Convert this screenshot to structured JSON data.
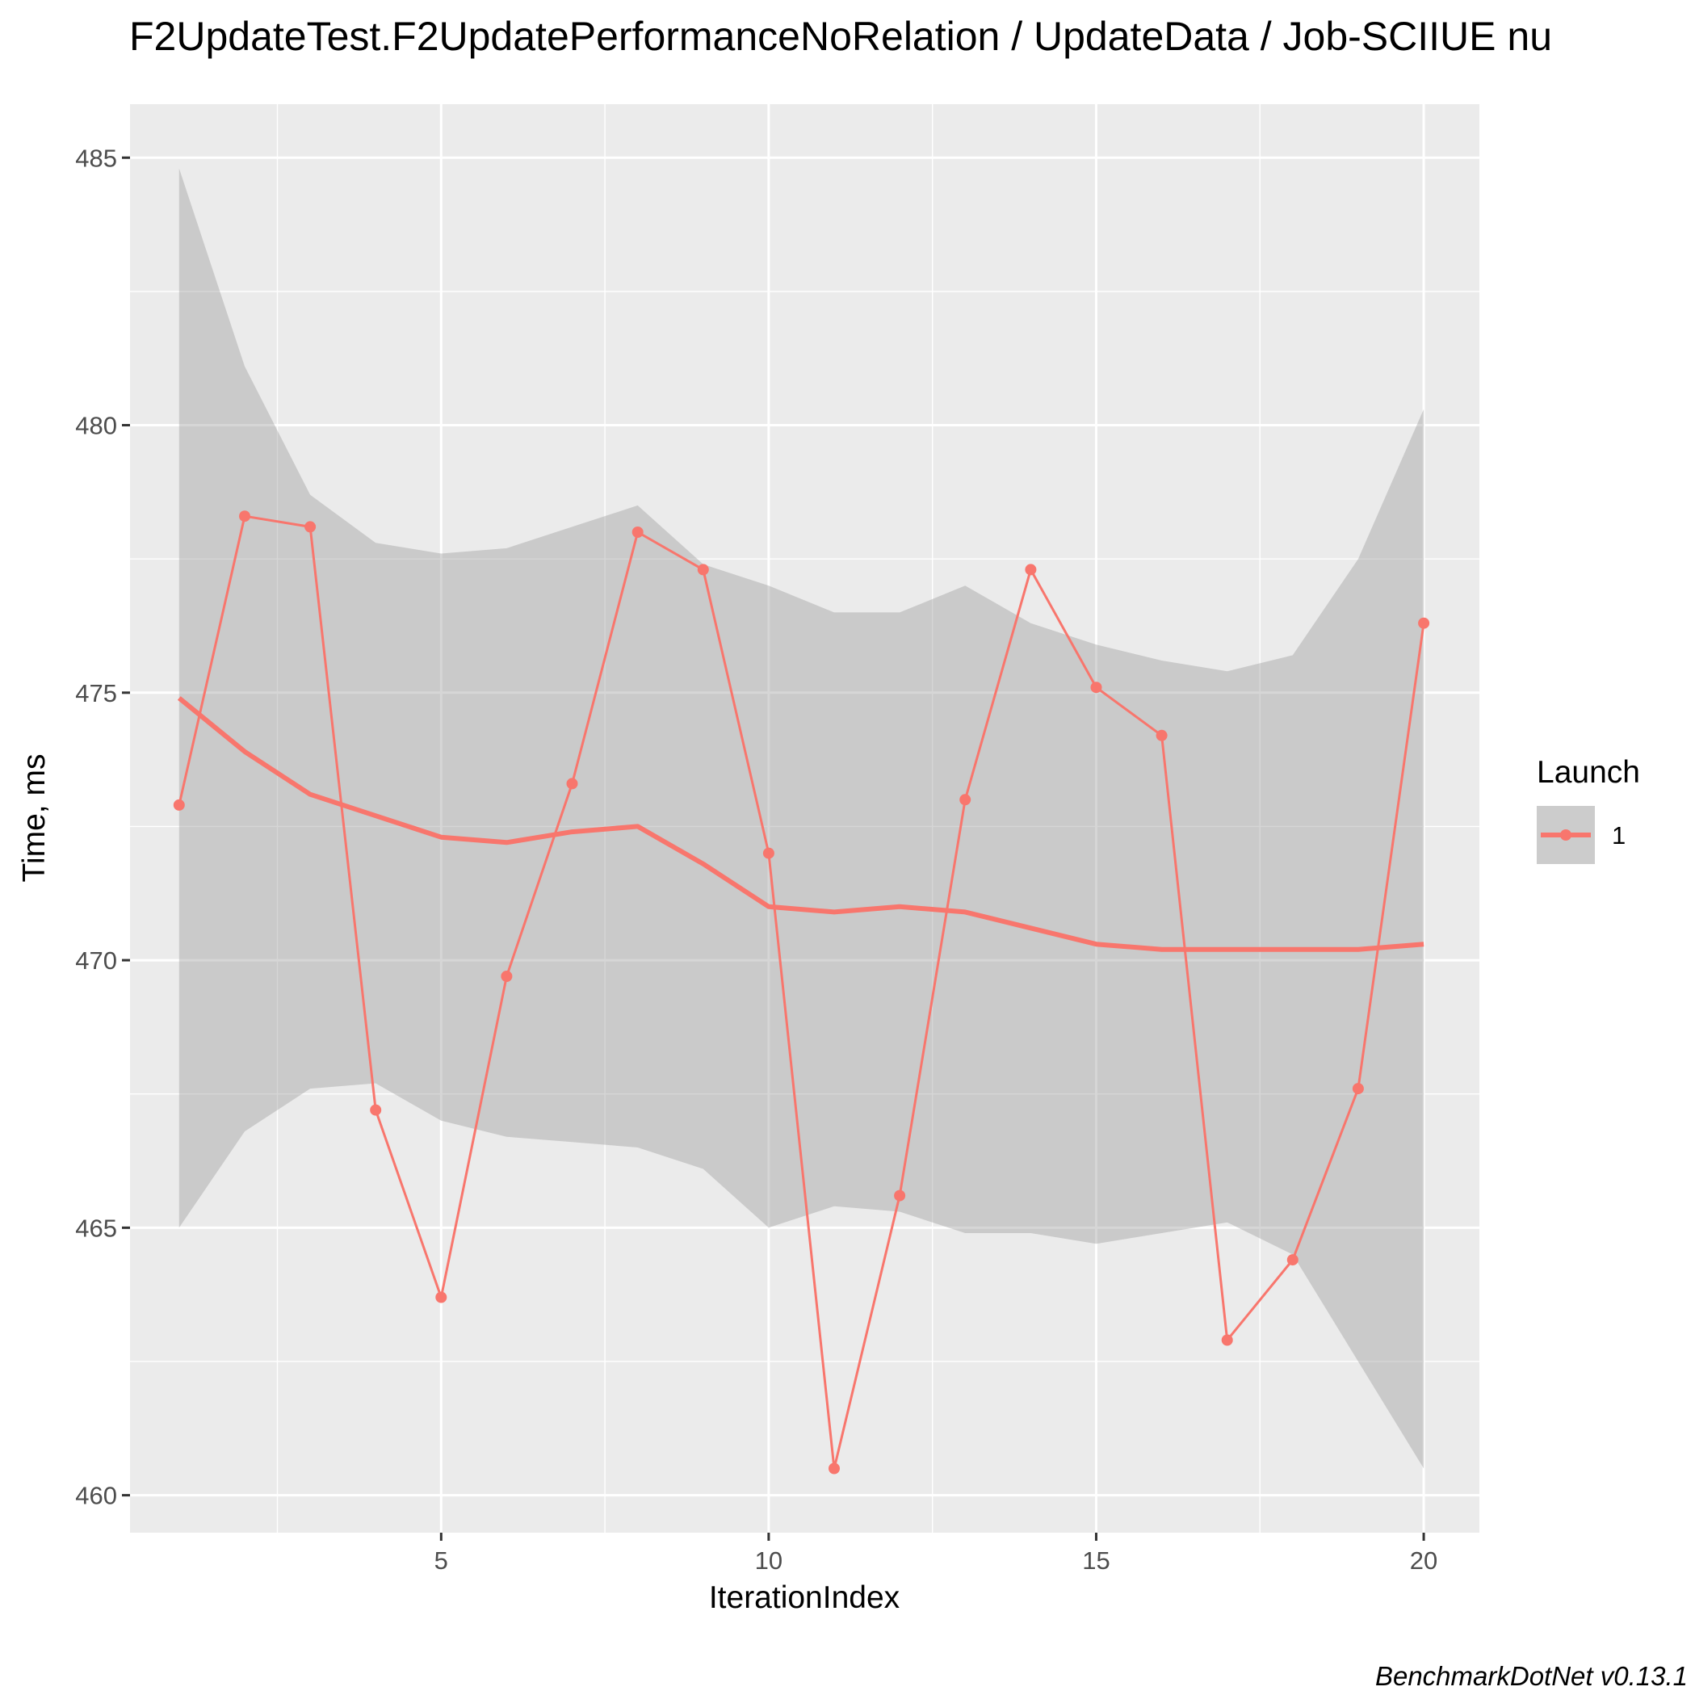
{
  "chart_data": {
    "type": "line",
    "title": "F2UpdateTest.F2UpdatePerformanceNoRelation / UpdateData / Job-SCIIUE nu",
    "xlabel": "IterationIndex",
    "ylabel": "Time, ms",
    "caption": "BenchmarkDotNet v0.13.1",
    "xlim": [
      0.25,
      20.85
    ],
    "ylim": [
      459.3,
      486.0
    ],
    "xticks": [
      5,
      10,
      15,
      20
    ],
    "xtick_labels": [
      "5",
      "10",
      "15",
      "20"
    ],
    "yticks": [
      460,
      465,
      470,
      475,
      480,
      485
    ],
    "ytick_labels": [
      "460",
      "465",
      "470",
      "475",
      "480",
      "485"
    ],
    "grid": true,
    "legend": {
      "title": "Launch",
      "position": "right",
      "entries": [
        "1"
      ]
    },
    "series": [
      {
        "name": "1",
        "color": "#f8766d",
        "x": [
          1,
          2,
          3,
          4,
          5,
          6,
          7,
          8,
          9,
          10,
          11,
          12,
          13,
          14,
          15,
          16,
          17,
          18,
          19,
          20
        ],
        "values": [
          472.9,
          478.3,
          478.1,
          467.2,
          463.7,
          469.7,
          473.3,
          478.0,
          477.3,
          472.0,
          460.5,
          465.6,
          473.0,
          477.3,
          475.1,
          474.2,
          462.9,
          464.4,
          467.6,
          476.3
        ]
      }
    ],
    "smooth": {
      "x": [
        1,
        2,
        3,
        4,
        5,
        6,
        7,
        8,
        9,
        10,
        11,
        12,
        13,
        14,
        15,
        16,
        17,
        18,
        19,
        20
      ],
      "fit": [
        474.9,
        473.9,
        473.1,
        472.7,
        472.3,
        472.2,
        472.4,
        472.5,
        471.8,
        471.0,
        470.9,
        471.0,
        470.9,
        470.6,
        470.3,
        470.2,
        470.2,
        470.2,
        470.2,
        470.3
      ],
      "lower": [
        465.0,
        466.8,
        467.6,
        467.7,
        467.0,
        466.7,
        466.6,
        466.5,
        466.1,
        465.0,
        465.4,
        465.3,
        464.9,
        464.9,
        464.7,
        464.9,
        465.1,
        464.5,
        462.5,
        460.5
      ],
      "upper": [
        484.8,
        481.1,
        478.7,
        477.8,
        477.6,
        477.7,
        478.1,
        478.5,
        477.4,
        477.0,
        476.5,
        476.5,
        477.0,
        476.3,
        475.9,
        475.6,
        475.4,
        475.7,
        477.5,
        480.3
      ],
      "band_color": "#999999",
      "line_color": "#f8766d"
    }
  }
}
